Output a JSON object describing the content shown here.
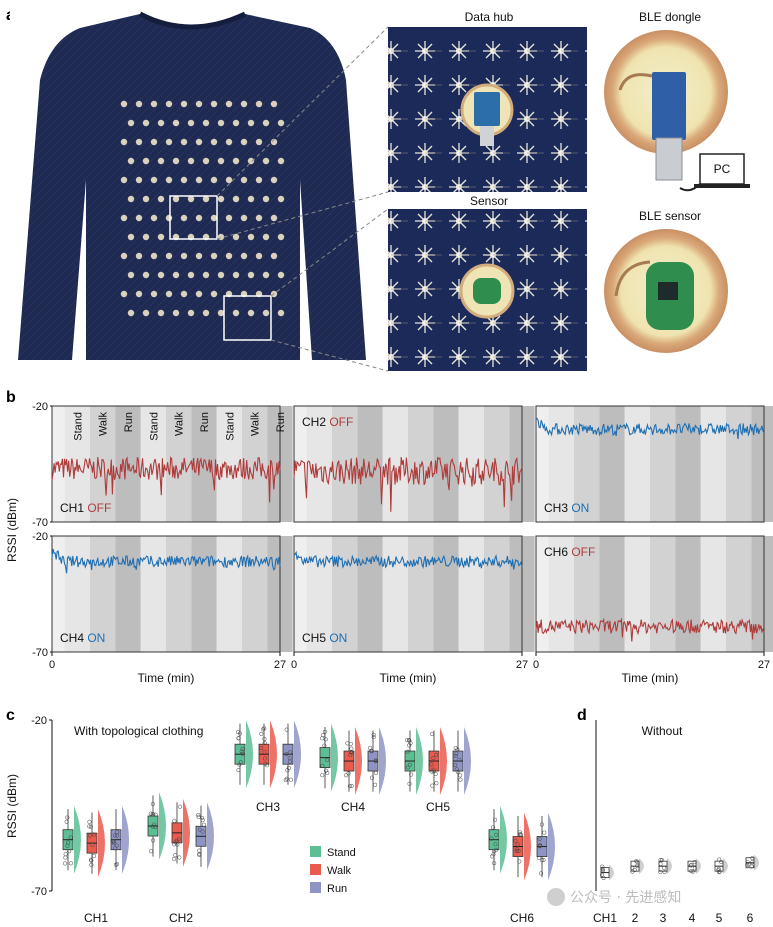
{
  "panel_labels": {
    "a": "a",
    "b": "b",
    "c": "c",
    "d": "d"
  },
  "panel_a": {
    "photo_labels": {
      "data_hub": "Data hub",
      "ble_dongle": "BLE dongle",
      "sensor": "Sensor",
      "ble_sensor": "BLE sensor",
      "pc": "PC"
    }
  },
  "colors": {
    "on": "#1f6fb2",
    "off": "#b03b3b",
    "stand": "#5cbf94",
    "walk": "#ea5b4f",
    "run": "#8e95c5"
  },
  "chart_data": [
    {
      "type": "line",
      "panel": "b",
      "xlabel": "Time (min)",
      "ylabel": "RSSI (dBm)",
      "xlim": [
        0,
        27
      ],
      "ylim": [
        -70,
        -20
      ],
      "x_ticks": [
        "0",
        "27"
      ],
      "y_ticks": [
        "-20",
        "-70"
      ],
      "activity_labels": [
        "Stand",
        "Walk",
        "Run",
        "Stand",
        "Walk",
        "Run",
        "Stand",
        "Walk",
        "Run"
      ],
      "series": [
        {
          "name": "CH1",
          "state": "OFF",
          "mean": -47,
          "amplitude": 5,
          "spike": 12
        },
        {
          "name": "CH2",
          "state": "OFF",
          "mean": -48,
          "amplitude": 6,
          "spike": 14
        },
        {
          "name": "CH3",
          "state": "ON",
          "mean": -30,
          "amplitude": 2.5,
          "spike": 3
        },
        {
          "name": "CH4",
          "state": "ON",
          "mean": -31,
          "amplitude": 2.5,
          "spike": 3
        },
        {
          "name": "CH5",
          "state": "ON",
          "mean": -31,
          "amplitude": 2.5,
          "spike": 3
        },
        {
          "name": "CH6",
          "state": "OFF",
          "mean": -59,
          "amplitude": 3,
          "spike": 6
        }
      ]
    },
    {
      "type": "box",
      "panel": "c",
      "title": "With topological clothing",
      "ylabel": "RSSI (dBm)",
      "ylim": [
        -70,
        -20
      ],
      "y_ticks": [
        "-20",
        "-70"
      ],
      "legend": [
        "Stand",
        "Walk",
        "Run"
      ],
      "groups": [
        {
          "name": "CH1",
          "medians": [
            -55,
            -56,
            -55
          ]
        },
        {
          "name": "CH2",
          "medians": [
            -51,
            -53,
            -54
          ]
        },
        {
          "name": "CH3",
          "medians": [
            -30,
            -30,
            -30
          ]
        },
        {
          "name": "CH4",
          "medians": [
            -31,
            -32,
            -32
          ]
        },
        {
          "name": "CH5",
          "medians": [
            -32,
            -32,
            -32
          ]
        },
        {
          "name": "CH6",
          "medians": [
            -55,
            -57,
            -57
          ]
        }
      ]
    },
    {
      "type": "box",
      "panel": "d",
      "title": "Without",
      "groups": [
        {
          "name": "CH1",
          "medians": [
            -69
          ]
        },
        {
          "name": "2",
          "medians": [
            -68
          ]
        },
        {
          "name": "3",
          "medians": [
            -68
          ]
        },
        {
          "name": "4",
          "medians": [
            -68
          ]
        },
        {
          "name": "5",
          "medians": [
            -68
          ]
        },
        {
          "name": "6",
          "medians": [
            -67
          ]
        }
      ]
    }
  ],
  "watermark": "公众号 · 先进感知"
}
